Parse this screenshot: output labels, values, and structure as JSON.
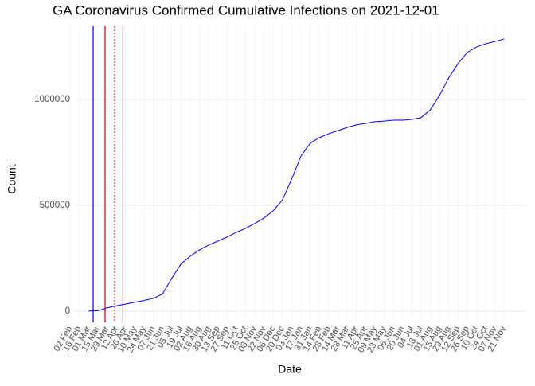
{
  "chart_data": {
    "type": "line",
    "title": "GA Coronavirus Confirmed Cumulative Infections on 2021-12-01",
    "x_label": "Date",
    "y_label": "Count",
    "categories": [
      "02 Feb",
      "16 Feb",
      "01 Mar",
      "15 Mar",
      "29 Mar",
      "12 Apr",
      "26 Apr",
      "10 May",
      "24 May",
      "07 Jun",
      "21 Jun",
      "05 Jul",
      "19 Jul",
      "02 Aug",
      "16 Aug",
      "30 Aug",
      "13 Sep",
      "27 Sep",
      "11 Oct",
      "25 Oct",
      "08 Nov",
      "22 Nov",
      "06 Dec",
      "20 Dec",
      "03 Jan",
      "17 Jan",
      "31 Jan",
      "14 Feb",
      "28 Feb",
      "14 Mar",
      "28 Mar",
      "11 Apr",
      "25 Apr",
      "09 May",
      "23 May",
      "06 Jun",
      "20 Jun",
      "04 Jul",
      "18 Jul",
      "01 Aug",
      "15 Aug",
      "29 Aug",
      "12 Sep",
      "26 Sep",
      "10 Oct",
      "24 Oct",
      "07 Nov",
      "21 Nov"
    ],
    "series": [
      {
        "color": "#0000ff",
        "values": [
          null,
          null,
          0,
          2000,
          15000,
          25000,
          33000,
          42000,
          50000,
          60000,
          80000,
          154000,
          222000,
          259000,
          289000,
          312000,
          331000,
          350000,
          372000,
          391000,
          414000,
          440000,
          474000,
          526000,
          624000,
          733000,
          793000,
          820000,
          838000,
          853000,
          868000,
          880000,
          887000,
          895000,
          898000,
          902000,
          902000,
          906000,
          914000,
          951000,
          1019000,
          1102000,
          1169000,
          1222000,
          1248000,
          1263000,
          1274000,
          1286000
        ]
      }
    ],
    "ylim": [
      -53000,
      1346000
    ],
    "yticks": [
      0,
      500000,
      1000000
    ],
    "grid": true
  }
}
